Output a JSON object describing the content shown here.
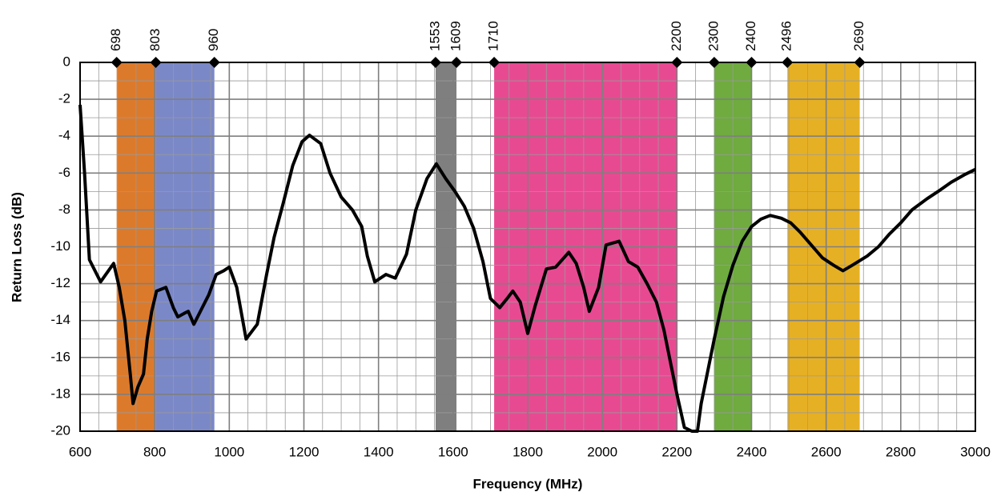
{
  "chart_data": {
    "type": "line",
    "x_label": "Frequency (MHz)",
    "y_label": "Return Loss (dB)",
    "xlim": [
      600,
      3000
    ],
    "xticks": [
      600,
      800,
      1000,
      1200,
      1400,
      1600,
      1800,
      2000,
      2200,
      2400,
      2600,
      2800,
      3000
    ],
    "ylim": [
      -20,
      0
    ],
    "yticks": [
      0,
      -2,
      -4,
      -6,
      -8,
      -10,
      -12,
      -14,
      -16,
      -18,
      -20
    ],
    "grid": true,
    "minor_grid": {
      "x": 50,
      "y": 1
    },
    "markers": [
      698,
      803,
      960,
      1553,
      1609,
      1710,
      2200,
      2300,
      2400,
      2496,
      2690
    ],
    "bands": [
      {
        "start": 698,
        "end": 803,
        "color": "#dc7a2b"
      },
      {
        "start": 803,
        "end": 960,
        "color": "#7b88c8"
      },
      {
        "start": 1553,
        "end": 1609,
        "color": "#7f7f7f"
      },
      {
        "start": 1710,
        "end": 2200,
        "color": "#e84a92"
      },
      {
        "start": 2300,
        "end": 2400,
        "color": "#6fab3f"
      },
      {
        "start": 2496,
        "end": 2690,
        "color": "#e6b024"
      }
    ],
    "series": [
      {
        "color": "#000000",
        "x": [
          600,
          612,
          625,
          655,
          690,
          705,
          720,
          735,
          742,
          755,
          770,
          780,
          792,
          805,
          830,
          850,
          862,
          880,
          890,
          905,
          920,
          945,
          965,
          985,
          1000,
          1020,
          1045,
          1060,
          1075,
          1100,
          1120,
          1145,
          1170,
          1195,
          1215,
          1245,
          1270,
          1300,
          1330,
          1355,
          1370,
          1390,
          1420,
          1445,
          1475,
          1500,
          1530,
          1555,
          1580,
          1605,
          1630,
          1655,
          1680,
          1700,
          1725,
          1745,
          1760,
          1780,
          1800,
          1820,
          1850,
          1875,
          1910,
          1930,
          1950,
          1965,
          1990,
          2010,
          2045,
          2070,
          2095,
          2120,
          2145,
          2165,
          2185,
          2200,
          2220,
          2240,
          2255,
          2265,
          2280,
          2300,
          2325,
          2350,
          2375,
          2400,
          2425,
          2450,
          2480,
          2505,
          2530,
          2560,
          2590,
          2620,
          2645,
          2670,
          2710,
          2740,
          2770,
          2800,
          2830,
          2870,
          2900,
          2935,
          2970,
          3000
        ],
        "values": [
          -2.3,
          -6,
          -10.7,
          -11.9,
          -10.9,
          -12.2,
          -14,
          -17,
          -18.5,
          -17.6,
          -16.9,
          -15,
          -13.5,
          -12.4,
          -12.2,
          -13.3,
          -13.8,
          -13.6,
          -13.5,
          -14.2,
          -13.6,
          -12.6,
          -11.5,
          -11.3,
          -11.1,
          -12.2,
          -15,
          -14.6,
          -14.2,
          -11.5,
          -9.5,
          -7.6,
          -5.6,
          -4.3,
          -3.95,
          -4.4,
          -6,
          -7.3,
          -8,
          -8.9,
          -10.5,
          -11.9,
          -11.5,
          -11.7,
          -10.4,
          -8,
          -6.3,
          -5.5,
          -6.3,
          -7,
          -7.8,
          -9,
          -10.8,
          -12.8,
          -13.3,
          -12.8,
          -12.4,
          -13,
          -14.7,
          -13.2,
          -11.2,
          -11.1,
          -10.3,
          -10.9,
          -12.2,
          -13.5,
          -12.2,
          -9.9,
          -9.7,
          -10.8,
          -11.1,
          -12,
          -13,
          -14.5,
          -16.5,
          -18,
          -19.8,
          -20,
          -20,
          -18.5,
          -17,
          -15,
          -12.7,
          -11,
          -9.7,
          -8.9,
          -8.5,
          -8.3,
          -8.45,
          -8.7,
          -9.2,
          -9.9,
          -10.6,
          -11,
          -11.3,
          -11,
          -10.5,
          -10,
          -9.3,
          -8.7,
          -8,
          -7.4,
          -7,
          -6.5,
          -6.1,
          -5.8
        ]
      }
    ]
  }
}
